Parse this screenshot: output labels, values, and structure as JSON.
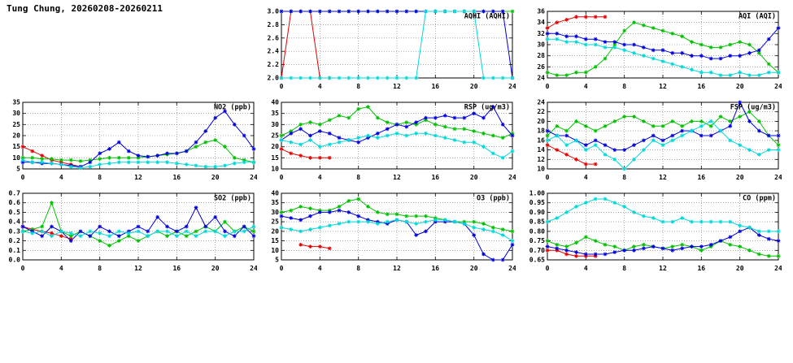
{
  "page": {
    "title": "Tung Chung, 20260208-20260211"
  },
  "colors": {
    "red": "#e60000",
    "green": "#00c000",
    "blue": "#0000dd",
    "cyan": "#00d8d8"
  },
  "chart_data": [
    {
      "id": "aqhi",
      "type": "line",
      "title": "AQHI (AQHI)",
      "xlim": [
        0,
        24
      ],
      "xticks": [
        0,
        4,
        8,
        12,
        16,
        20,
        24
      ],
      "ylim": [
        2.0,
        3.0
      ],
      "yticks": [
        2.0,
        2.2,
        2.4,
        2.6,
        2.8,
        3.0
      ],
      "ytick_labels": [
        "2.0",
        "2.2",
        "2.4",
        "2.6",
        "2.8",
        "3.0"
      ],
      "series": [
        {
          "name": "red",
          "color": "#e60000",
          "x0": 0,
          "y": [
            2,
            3,
            3,
            3,
            2,
            2
          ]
        },
        {
          "name": "green",
          "color": "#00c000",
          "x0": 0,
          "y": [
            3,
            3,
            3,
            3,
            3,
            3,
            3,
            3,
            3,
            3,
            3,
            3,
            3,
            3,
            3,
            3,
            3,
            3,
            3,
            3,
            3,
            3,
            3,
            3,
            3
          ]
        },
        {
          "name": "blue",
          "color": "#0000dd",
          "x0": 0,
          "y": [
            3,
            3,
            3,
            3,
            3,
            3,
            3,
            3,
            3,
            3,
            3,
            3,
            3,
            3,
            3,
            3,
            3,
            3,
            3,
            3,
            3,
            3,
            3,
            3,
            2
          ]
        },
        {
          "name": "cyan",
          "color": "#00d8d8",
          "x0": 0,
          "y": [
            2,
            2,
            2,
            2,
            2,
            2,
            2,
            2,
            2,
            2,
            2,
            2,
            2,
            2,
            2,
            3,
            3,
            3,
            3,
            3,
            3,
            2,
            2,
            2,
            2
          ]
        }
      ]
    },
    {
      "id": "aqi",
      "type": "line",
      "title": "AQI (AQI)",
      "xlim": [
        0,
        24
      ],
      "xticks": [
        0,
        4,
        8,
        12,
        16,
        20,
        24
      ],
      "ylim": [
        24,
        36
      ],
      "yticks": [
        24,
        26,
        28,
        30,
        32,
        34,
        36
      ],
      "ytick_labels": [
        "24",
        "26",
        "28",
        "30",
        "32",
        "34",
        "36"
      ],
      "series": [
        {
          "name": "red",
          "color": "#e60000",
          "x0": 0,
          "y": [
            33,
            34,
            34.5,
            35,
            35,
            35,
            35
          ]
        },
        {
          "name": "green",
          "color": "#00c000",
          "x0": 0,
          "y": [
            25,
            24.5,
            24.5,
            25,
            25,
            26,
            27.5,
            30,
            32.5,
            34,
            33.5,
            33,
            32.5,
            32,
            31.5,
            30.5,
            30,
            29.5,
            29.5,
            30,
            30.5,
            30,
            28.5,
            26.5,
            25
          ]
        },
        {
          "name": "blue",
          "color": "#0000dd",
          "x0": 0,
          "y": [
            32,
            32,
            31.5,
            31.5,
            31,
            31,
            30.5,
            30.5,
            30,
            30,
            29.5,
            29,
            29,
            28.5,
            28.5,
            28,
            28,
            27.5,
            27.5,
            28,
            28,
            28.5,
            29,
            31,
            33
          ]
        },
        {
          "name": "cyan",
          "color": "#00d8d8",
          "x0": 0,
          "y": [
            31,
            31,
            30.5,
            30.5,
            30,
            30,
            29.5,
            29.5,
            29,
            28.5,
            28,
            27.5,
            27,
            26.5,
            26,
            25.5,
            25,
            25,
            24.5,
            24.5,
            25,
            24.5,
            24.5,
            25,
            25
          ]
        }
      ]
    },
    {
      "id": "no2",
      "type": "line",
      "title": "NO2 (ppb)",
      "xlim": [
        0,
        24
      ],
      "xticks": [
        0,
        4,
        8,
        12,
        16,
        20,
        24
      ],
      "ylim": [
        5,
        35
      ],
      "yticks": [
        5,
        10,
        15,
        20,
        25,
        30,
        35
      ],
      "ytick_labels": [
        "5",
        "10",
        "15",
        "20",
        "25",
        "30",
        "35"
      ],
      "series": [
        {
          "name": "red",
          "color": "#e60000",
          "x0": 0,
          "y": [
            15,
            13,
            11,
            9,
            8,
            7,
            6
          ]
        },
        {
          "name": "green",
          "color": "#00c000",
          "x0": 0,
          "y": [
            10,
            10,
            9.5,
            9.5,
            9,
            9,
            8.5,
            9,
            9.5,
            10,
            10,
            10,
            10,
            10.5,
            11,
            11.5,
            12,
            13,
            15,
            17,
            18,
            15,
            10,
            9,
            8
          ]
        },
        {
          "name": "blue",
          "color": "#0000dd",
          "x0": 0,
          "y": [
            8,
            8,
            7.5,
            7.5,
            7,
            6.5,
            6,
            8,
            12,
            14,
            17,
            13,
            11,
            10.5,
            11,
            12,
            12,
            13,
            17,
            22,
            28,
            31,
            25,
            20,
            14
          ]
        },
        {
          "name": "cyan",
          "color": "#00d8d8",
          "x0": 0,
          "y": [
            9,
            8,
            8,
            7.5,
            7,
            6,
            5.5,
            6,
            7,
            7.5,
            8,
            8,
            8,
            8,
            8,
            8,
            7.5,
            7,
            6.5,
            6,
            6,
            6.5,
            7.5,
            8,
            8
          ]
        }
      ]
    },
    {
      "id": "rsp",
      "type": "line",
      "title": "RSP (ug/m3)",
      "xlim": [
        0,
        24
      ],
      "xticks": [
        0,
        4,
        8,
        12,
        16,
        20,
        24
      ],
      "ylim": [
        10,
        40
      ],
      "yticks": [
        10,
        15,
        20,
        25,
        30,
        35,
        40
      ],
      "ytick_labels": [
        "10",
        "15",
        "20",
        "25",
        "30",
        "35",
        "40"
      ],
      "series": [
        {
          "name": "red",
          "color": "#e60000",
          "x0": 0,
          "y": [
            19,
            17,
            16,
            15,
            15,
            15
          ]
        },
        {
          "name": "green",
          "color": "#00c000",
          "x0": 0,
          "y": [
            25,
            27,
            30,
            31,
            30,
            32,
            34,
            33,
            37,
            38,
            33,
            31,
            30,
            31,
            30,
            32,
            30,
            29,
            28,
            28,
            27,
            26,
            25,
            24,
            26
          ]
        },
        {
          "name": "blue",
          "color": "#0000dd",
          "x0": 0,
          "y": [
            23,
            26,
            28,
            25,
            27,
            26,
            24,
            23,
            22,
            24,
            26,
            28,
            30,
            29,
            31,
            33,
            33,
            34,
            33,
            33,
            35,
            33,
            38,
            30,
            25
          ]
        },
        {
          "name": "cyan",
          "color": "#00d8d8",
          "x0": 0,
          "y": [
            23,
            22,
            21,
            23,
            20,
            21,
            22,
            23,
            24,
            25,
            24,
            25,
            26,
            25,
            26,
            26,
            25,
            24,
            23,
            22,
            22,
            20,
            17,
            15,
            18
          ]
        }
      ]
    },
    {
      "id": "fsp",
      "type": "line",
      "title": "FSP (ug/m3)",
      "xlim": [
        0,
        24
      ],
      "xticks": [
        0,
        4,
        8,
        12,
        16,
        20,
        24
      ],
      "ylim": [
        10,
        24
      ],
      "yticks": [
        10,
        12,
        14,
        16,
        18,
        20,
        22,
        24
      ],
      "ytick_labels": [
        "10",
        "12",
        "14",
        "16",
        "18",
        "20",
        "22",
        "24"
      ],
      "series": [
        {
          "name": "red",
          "color": "#e60000",
          "x0": 0,
          "y": [
            15,
            14,
            13,
            12,
            11,
            11
          ]
        },
        {
          "name": "green",
          "color": "#00c000",
          "x0": 0,
          "y": [
            17,
            19,
            18,
            20,
            19,
            18,
            19,
            20,
            21,
            21,
            20,
            19,
            19,
            20,
            19,
            20,
            20,
            19,
            21,
            20,
            21,
            22,
            20,
            17,
            15
          ]
        },
        {
          "name": "blue",
          "color": "#0000dd",
          "x0": 0,
          "y": [
            18,
            17,
            17,
            16,
            15,
            16,
            15,
            14,
            14,
            15,
            16,
            17,
            16,
            17,
            18,
            18,
            17,
            17,
            18,
            19,
            24,
            20,
            18,
            17,
            17
          ]
        },
        {
          "name": "cyan",
          "color": "#00d8d8",
          "x0": 0,
          "y": [
            16,
            17,
            15,
            16,
            14,
            15,
            13,
            12,
            10,
            12,
            14,
            16,
            15,
            16,
            17,
            18,
            19,
            20,
            18,
            16,
            15,
            14,
            13,
            14,
            14
          ]
        }
      ]
    },
    {
      "id": "so2",
      "type": "line",
      "title": "SO2 (ppb)",
      "xlim": [
        0,
        24
      ],
      "xticks": [
        0,
        4,
        8,
        12,
        16,
        20,
        24
      ],
      "ylim": [
        0.0,
        0.7
      ],
      "yticks": [
        0.0,
        0.1,
        0.2,
        0.3,
        0.4,
        0.5,
        0.6,
        0.7
      ],
      "ytick_labels": [
        "0.0",
        "0.1",
        "0.2",
        "0.3",
        "0.4",
        "0.5",
        "0.6",
        "0.7"
      ],
      "series": [
        {
          "name": "red",
          "color": "#e60000",
          "x0": 0,
          "y": [
            0.35,
            0.32,
            0.3,
            0.28,
            0.25,
            0.22
          ]
        },
        {
          "name": "green",
          "color": "#00c000",
          "x0": 0,
          "y": [
            0.3,
            0.32,
            0.35,
            0.6,
            0.3,
            0.25,
            0.3,
            0.25,
            0.2,
            0.15,
            0.2,
            0.25,
            0.2,
            0.25,
            0.3,
            0.25,
            0.3,
            0.25,
            0.3,
            0.35,
            0.3,
            0.4,
            0.3,
            0.35,
            0.3
          ]
        },
        {
          "name": "blue",
          "color": "#0000dd",
          "x0": 0,
          "y": [
            0.35,
            0.3,
            0.25,
            0.35,
            0.3,
            0.2,
            0.3,
            0.25,
            0.35,
            0.3,
            0.25,
            0.3,
            0.35,
            0.3,
            0.45,
            0.35,
            0.3,
            0.35,
            0.55,
            0.35,
            0.45,
            0.3,
            0.25,
            0.35,
            0.25
          ]
        },
        {
          "name": "cyan",
          "color": "#00d8d8",
          "x0": 0,
          "y": [
            0.3,
            0.28,
            0.3,
            0.25,
            0.3,
            0.28,
            0.25,
            0.3,
            0.28,
            0.25,
            0.3,
            0.28,
            0.3,
            0.25,
            0.3,
            0.3,
            0.25,
            0.3,
            0.25,
            0.3,
            0.3,
            0.25,
            0.3,
            0.3,
            0.35
          ]
        }
      ]
    },
    {
      "id": "o3",
      "type": "line",
      "title": "O3 (ppb)",
      "xlim": [
        0,
        24
      ],
      "xticks": [
        0,
        4,
        8,
        12,
        16,
        20,
        24
      ],
      "ylim": [
        5,
        40
      ],
      "yticks": [
        5,
        10,
        15,
        20,
        25,
        30,
        35,
        40
      ],
      "ytick_labels": [
        "5",
        "10",
        "15",
        "20",
        "25",
        "30",
        "35",
        "40"
      ],
      "series": [
        {
          "name": "red",
          "color": "#e60000",
          "x0": 2,
          "y": [
            13,
            12,
            12,
            11
          ]
        },
        {
          "name": "green",
          "color": "#00c000",
          "x0": 0,
          "y": [
            30,
            31,
            33,
            32,
            31,
            31,
            33,
            36,
            37,
            33,
            30,
            29,
            29,
            28,
            28,
            28,
            27,
            26,
            25,
            25,
            25,
            24,
            22,
            21,
            20
          ]
        },
        {
          "name": "blue",
          "color": "#0000dd",
          "x0": 0,
          "y": [
            28,
            27,
            26,
            28,
            30,
            30,
            31,
            30,
            28,
            26,
            25,
            24,
            26,
            25,
            18,
            20,
            25,
            25,
            25,
            24,
            18,
            8,
            5,
            5,
            13
          ]
        },
        {
          "name": "cyan",
          "color": "#00d8d8",
          "x0": 0,
          "y": [
            22,
            21,
            20,
            21,
            22,
            23,
            24,
            25,
            25,
            25,
            24,
            25,
            26,
            25,
            24,
            25,
            26,
            26,
            25,
            24,
            22,
            21,
            20,
            18,
            15
          ]
        }
      ]
    },
    {
      "id": "co",
      "type": "line",
      "title": "CO (ppm)",
      "xlim": [
        0,
        24
      ],
      "xticks": [
        0,
        4,
        8,
        12,
        16,
        20,
        24
      ],
      "ylim": [
        0.65,
        1.0
      ],
      "yticks": [
        0.65,
        0.7,
        0.75,
        0.8,
        0.85,
        0.9,
        0.95,
        1.0
      ],
      "ytick_labels": [
        "0.65",
        "0.70",
        "0.75",
        "0.80",
        "0.85",
        "0.90",
        "0.95",
        "1.00"
      ],
      "series": [
        {
          "name": "red",
          "color": "#e60000",
          "x0": 0,
          "y": [
            0.7,
            0.7,
            0.68,
            0.67,
            0.67,
            0.67
          ]
        },
        {
          "name": "green",
          "color": "#00c000",
          "x0": 0,
          "y": [
            0.75,
            0.73,
            0.72,
            0.74,
            0.77,
            0.75,
            0.73,
            0.72,
            0.7,
            0.72,
            0.73,
            0.72,
            0.71,
            0.72,
            0.73,
            0.72,
            0.7,
            0.72,
            0.75,
            0.73,
            0.72,
            0.7,
            0.68,
            0.67,
            0.67
          ]
        },
        {
          "name": "blue",
          "color": "#0000dd",
          "x0": 0,
          "y": [
            0.72,
            0.71,
            0.7,
            0.69,
            0.68,
            0.68,
            0.68,
            0.69,
            0.7,
            0.7,
            0.71,
            0.72,
            0.71,
            0.7,
            0.71,
            0.72,
            0.72,
            0.73,
            0.75,
            0.77,
            0.8,
            0.82,
            0.78,
            0.76,
            0.75
          ]
        },
        {
          "name": "cyan",
          "color": "#00d8d8",
          "x0": 0,
          "y": [
            0.85,
            0.87,
            0.9,
            0.93,
            0.95,
            0.97,
            0.97,
            0.95,
            0.93,
            0.9,
            0.88,
            0.87,
            0.85,
            0.85,
            0.87,
            0.85,
            0.85,
            0.85,
            0.85,
            0.85,
            0.83,
            0.82,
            0.8,
            0.8,
            0.8
          ]
        }
      ]
    }
  ]
}
